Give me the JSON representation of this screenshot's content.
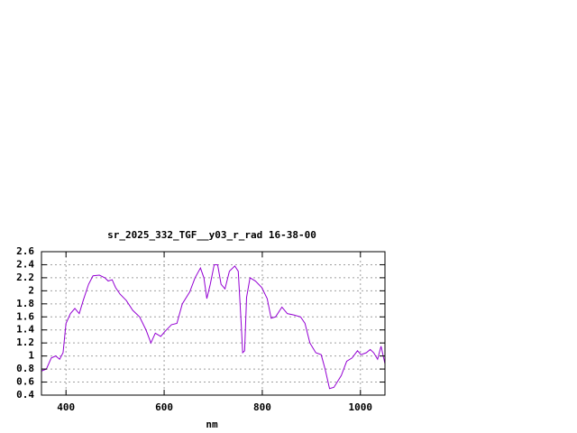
{
  "chart_data": {
    "type": "line",
    "title": "sr_2025_332_TGF__y03_r_rad 16-38-00",
    "x_label": "nm",
    "x": [
      350,
      360,
      370,
      379,
      387,
      394,
      400,
      409,
      418,
      427,
      435,
      446,
      455,
      468,
      479,
      486,
      494,
      501,
      510,
      523,
      536,
      550,
      563,
      573,
      582,
      593,
      602,
      615,
      626,
      637,
      652,
      663,
      674,
      681,
      687,
      694,
      702,
      709,
      716,
      724,
      733,
      744,
      751,
      757,
      760,
      764,
      768,
      775,
      786,
      799,
      810,
      818,
      827,
      840,
      851,
      864,
      878,
      887,
      897,
      909,
      920,
      928,
      937,
      946,
      961,
      972,
      983,
      994,
      1001,
      1012,
      1020,
      1027,
      1035,
      1042,
      1050
    ],
    "series": [
      {
        "color": "#9400d3",
        "values": [
          0.77,
          0.8,
          0.97,
          1.0,
          0.95,
          1.05,
          1.5,
          1.65,
          1.73,
          1.65,
          1.85,
          2.1,
          2.23,
          2.24,
          2.2,
          2.15,
          2.17,
          2.05,
          1.95,
          1.85,
          1.7,
          1.6,
          1.4,
          1.2,
          1.35,
          1.3,
          1.38,
          1.48,
          1.5,
          1.8,
          1.98,
          2.2,
          2.35,
          2.2,
          1.88,
          2.1,
          2.4,
          2.4,
          2.1,
          2.03,
          2.3,
          2.38,
          2.3,
          1.5,
          1.05,
          1.08,
          1.9,
          2.2,
          2.15,
          2.05,
          1.88,
          1.58,
          1.6,
          1.75,
          1.65,
          1.63,
          1.6,
          1.5,
          1.2,
          1.05,
          1.02,
          0.8,
          0.5,
          0.52,
          0.7,
          0.92,
          0.97,
          1.08,
          1.02,
          1.05,
          1.1,
          1.05,
          0.95,
          1.15,
          0.88
        ]
      }
    ],
    "xlim": [
      350,
      1050
    ],
    "xticks": [
      400,
      600,
      800,
      1000
    ],
    "ylim": [
      0.4,
      2.6
    ],
    "yticks": [
      0.4,
      0.6,
      0.8,
      1,
      1.2,
      1.4,
      1.6,
      1.8,
      2,
      2.2,
      2.4,
      2.6
    ],
    "grid": true
  }
}
